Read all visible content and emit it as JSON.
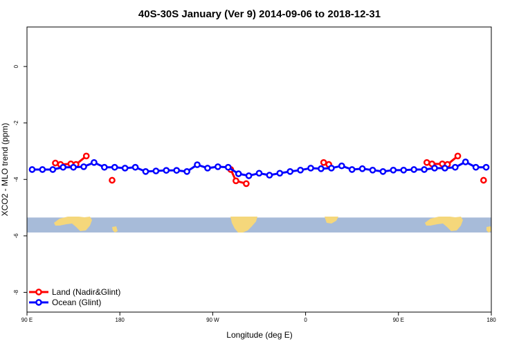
{
  "chart_data": {
    "type": "line",
    "title": "40S-30S January (Ver 9)   2014-09-06 to 2018-12-31",
    "xlabel": "Longitude (deg E)",
    "ylabel": "XCO2 - MLO trend (ppm)",
    "xlim": [
      90,
      540
    ],
    "ylim": [
      -8.7,
      1.4
    ],
    "x_ticks": [
      {
        "value": 90,
        "label": "90 E"
      },
      {
        "value": 180,
        "label": "180"
      },
      {
        "value": 270,
        "label": "90 W"
      },
      {
        "value": 360,
        "label": "0"
      },
      {
        "value": 450,
        "label": "90 E"
      },
      {
        "value": 540,
        "label": "180"
      }
    ],
    "y_ticks": [
      {
        "value": 0,
        "label": "0"
      },
      {
        "value": -2,
        "label": "-2"
      },
      {
        "value": -4,
        "label": "-4"
      },
      {
        "value": -6,
        "label": "-6"
      },
      {
        "value": -8,
        "label": "-8"
      }
    ],
    "grid": false,
    "legend_position": "bottom-left",
    "map_band": {
      "y_top": -5.35,
      "y_bottom": -5.88,
      "ocean_color": "#a7bbd9",
      "land_color": "#f5d77b"
    },
    "series": [
      {
        "name": "Land (Nadir&Glint)",
        "color": "#ff0000",
        "segments": [
          {
            "x": [
              117.5,
              122.5,
              132.5,
              137.5,
              147.5
            ],
            "y": [
              -3.42,
              -3.47,
              -3.45,
              -3.47,
              -3.17
            ]
          },
          {
            "x": [
              172.5
            ],
            "y": [
              -4.03
            ]
          },
          {
            "x": [
              287.5,
              292.5,
              302.5
            ],
            "y": [
              -3.65,
              -4.05,
              -4.15
            ]
          },
          {
            "x": [
              377.5,
              382.5
            ],
            "y": [
              -3.4,
              -3.47
            ]
          },
          {
            "x": [
              477.5,
              482.5,
              492.5,
              497.5,
              507.5
            ],
            "y": [
              -3.4,
              -3.45,
              -3.45,
              -3.47,
              -3.17
            ]
          },
          {
            "x": [
              532.5
            ],
            "y": [
              -4.03
            ]
          }
        ]
      },
      {
        "name": "Ocean (Glint)",
        "color": "#0000ff",
        "x": [
          95,
          105,
          115,
          125,
          135,
          145,
          155,
          165,
          175,
          185,
          195,
          205,
          215,
          225,
          235,
          245,
          255,
          265,
          275,
          285,
          295,
          305,
          315,
          325,
          335,
          345,
          355,
          365,
          375,
          385,
          395,
          405,
          415,
          425,
          435,
          445,
          455,
          465,
          475,
          485,
          495,
          505,
          515,
          525,
          535
        ],
        "y": [
          -3.65,
          -3.65,
          -3.65,
          -3.57,
          -3.57,
          -3.55,
          -3.4,
          -3.57,
          -3.57,
          -3.6,
          -3.57,
          -3.72,
          -3.7,
          -3.68,
          -3.68,
          -3.72,
          -3.48,
          -3.6,
          -3.55,
          -3.57,
          -3.8,
          -3.87,
          -3.78,
          -3.85,
          -3.78,
          -3.72,
          -3.67,
          -3.6,
          -3.62,
          -3.6,
          -3.52,
          -3.65,
          -3.62,
          -3.67,
          -3.72,
          -3.67,
          -3.67,
          -3.65,
          -3.65,
          -3.6,
          -3.6,
          -3.57,
          -3.38,
          -3.57,
          -3.57
        ]
      }
    ]
  }
}
